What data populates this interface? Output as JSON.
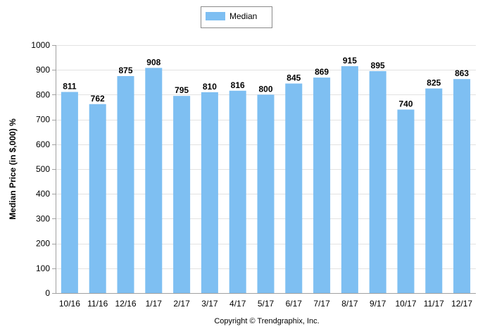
{
  "chart_data": {
    "type": "bar",
    "categories": [
      "10/16",
      "11/16",
      "12/16",
      "1/17",
      "2/17",
      "3/17",
      "4/17",
      "5/17",
      "6/17",
      "7/17",
      "8/17",
      "9/17",
      "10/17",
      "11/17",
      "12/17"
    ],
    "series": [
      {
        "name": "Median",
        "values": [
          811,
          762,
          875,
          908,
          795,
          810,
          816,
          800,
          845,
          869,
          915,
          895,
          740,
          825,
          863
        ]
      }
    ],
    "ylabel": "Median Price (in $,000) %",
    "ylim": [
      0,
      1000
    ],
    "yticks": [
      0,
      100,
      200,
      300,
      400,
      500,
      600,
      700,
      800,
      900,
      1000
    ],
    "grid": true,
    "legend_position": "top-center",
    "data_labels": true,
    "colors": {
      "bar": "#7ebff2",
      "grid": "#e2e2e2",
      "axis": "#a0a0a0"
    }
  },
  "footer": {
    "copyright": "Copyright © Trendgraphix, Inc."
  }
}
